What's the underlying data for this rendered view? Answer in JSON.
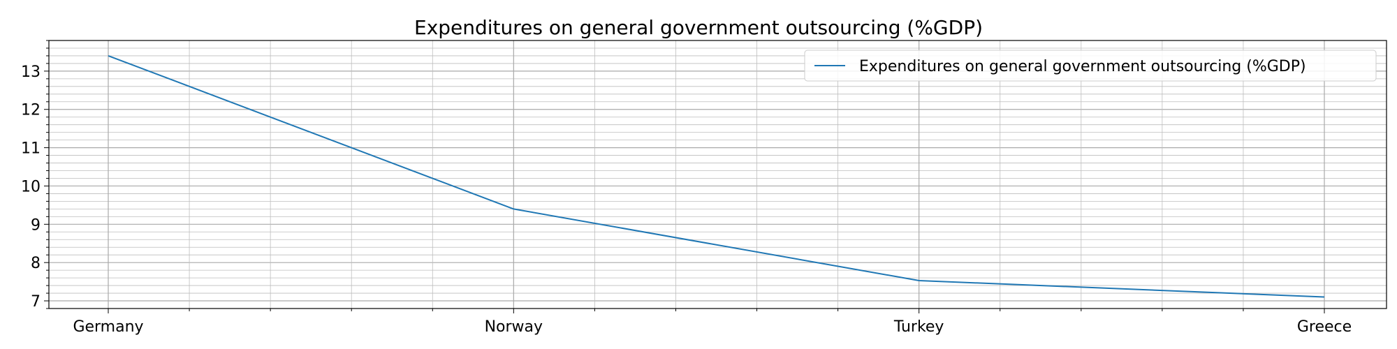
{
  "chart_data": {
    "type": "line",
    "title": "Expenditures on general government outsourcing (%GDP)",
    "xlabel": "",
    "ylabel": "",
    "categories": [
      "Germany",
      "Norway",
      "Turkey",
      "Greece"
    ],
    "series": [
      {
        "name": "Expenditures on general government outsourcing (%GDP)",
        "values": [
          13.4,
          9.4,
          7.53,
          7.1
        ],
        "color": "#1f77b4"
      }
    ],
    "ylim": [
      6.8,
      13.8
    ],
    "yticks": [
      7,
      8,
      9,
      10,
      11,
      12,
      13
    ],
    "grid": true,
    "minor_grid": true,
    "legend_position": "top-right"
  }
}
